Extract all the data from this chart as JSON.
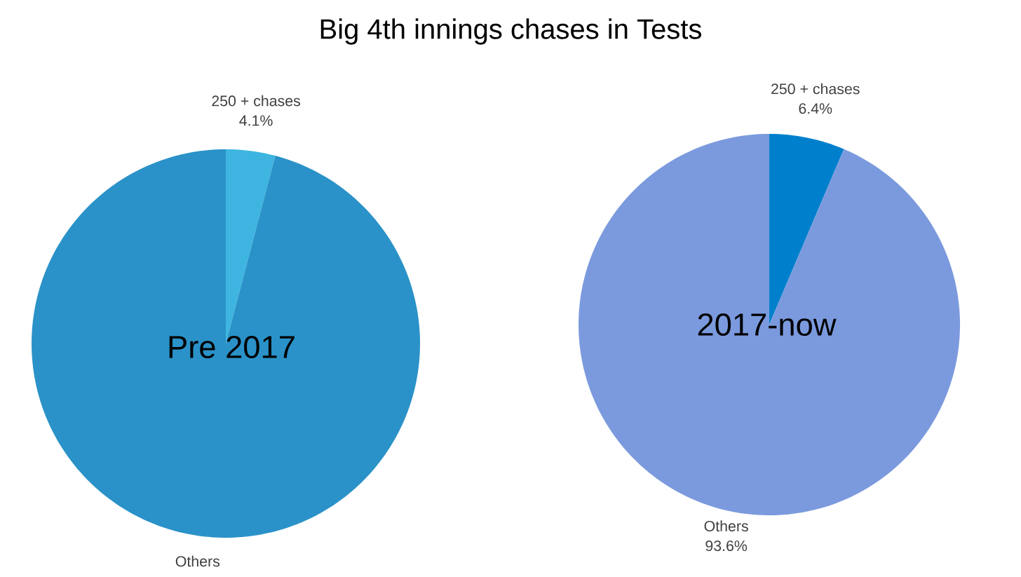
{
  "chart_data": [
    {
      "type": "pie",
      "title": "Big 4th innings chases in Tests",
      "annotations": [
        "Pre 2017"
      ],
      "categories": [
        "250 + chases",
        "Others"
      ],
      "values": [
        4.1,
        95.9
      ],
      "colors": [
        "#3db5e0",
        "#2a92c8"
      ],
      "value_labels": [
        "4.1%",
        null
      ]
    },
    {
      "type": "pie",
      "annotations": [
        "2017-now"
      ],
      "categories": [
        "250 + chases",
        "Others"
      ],
      "values": [
        6.4,
        93.6
      ],
      "colors": [
        "#0080cc",
        "#7b9ade"
      ],
      "value_labels": [
        "6.4%",
        "93.6%"
      ]
    }
  ]
}
